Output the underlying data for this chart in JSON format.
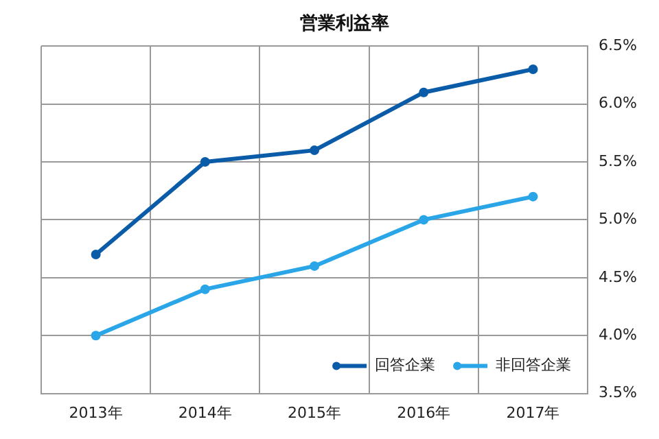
{
  "chart_data": {
    "type": "line",
    "title": "営業利益率",
    "categories": [
      "2013年",
      "2014年",
      "2015年",
      "2016年",
      "2017年"
    ],
    "series": [
      {
        "name": "回答企業",
        "color": "#0b5ca8",
        "values": [
          4.7,
          5.5,
          5.6,
          6.1,
          6.3
        ]
      },
      {
        "name": "非回答企業",
        "color": "#2aa6e8",
        "values": [
          4.0,
          4.4,
          4.6,
          5.0,
          5.2
        ]
      }
    ],
    "ylim": [
      3.5,
      6.5
    ],
    "yticks": [
      {
        "value": 3.5,
        "label": "3.5%"
      },
      {
        "value": 4.0,
        "label": "4.0%"
      },
      {
        "value": 4.5,
        "label": "4.5%"
      },
      {
        "value": 5.0,
        "label": "5.0%"
      },
      {
        "value": 5.5,
        "label": "5.5%"
      },
      {
        "value": 6.0,
        "label": "6.0%"
      },
      {
        "value": 6.5,
        "label": "6.5%"
      }
    ],
    "grid": true,
    "legend": "bottom right",
    "marker": "circle",
    "line_style": "solid"
  }
}
